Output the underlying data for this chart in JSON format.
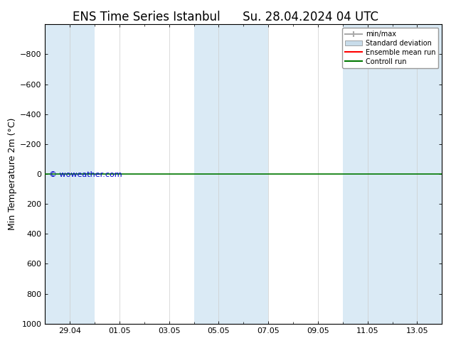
{
  "title1": "ENS Time Series Istanbul",
  "title2": "Su. 28.04.2024 04 UTC",
  "ylabel": "Min Temperature 2m (°C)",
  "ylim": [
    -1000,
    1000
  ],
  "yticks": [
    -800,
    -600,
    -400,
    -200,
    0,
    200,
    400,
    600,
    800,
    1000
  ],
  "xlim": [
    0,
    16
  ],
  "xtick_positions": [
    1,
    3,
    5,
    7,
    9,
    11,
    13,
    15
  ],
  "xtick_labels": [
    "29.04",
    "01.05",
    "03.05",
    "05.05",
    "07.05",
    "09.05",
    "11.05",
    "13.05"
  ],
  "shaded_bands": [
    [
      0,
      2
    ],
    [
      6,
      8
    ],
    [
      8,
      9
    ],
    [
      12,
      13
    ],
    [
      13,
      14
    ],
    [
      14,
      16
    ]
  ],
  "shaded_color": "#daeaf5",
  "control_run_y": 0,
  "control_run_color": "#007700",
  "ensemble_mean_color": "#ff0000",
  "minmax_color": "#aaaaaa",
  "stddev_color": "#c8dcea",
  "watermark": "© woweather.com",
  "watermark_color": "#0000cc",
  "background_color": "#ffffff",
  "legend_labels": [
    "min/max",
    "Standard deviation",
    "Ensemble mean run",
    "Controll run"
  ],
  "legend_colors": [
    "#aaaaaa",
    "#c8dcea",
    "#ff0000",
    "#007700"
  ],
  "title_fontsize": 12,
  "tick_fontsize": 8,
  "ylabel_fontsize": 9
}
